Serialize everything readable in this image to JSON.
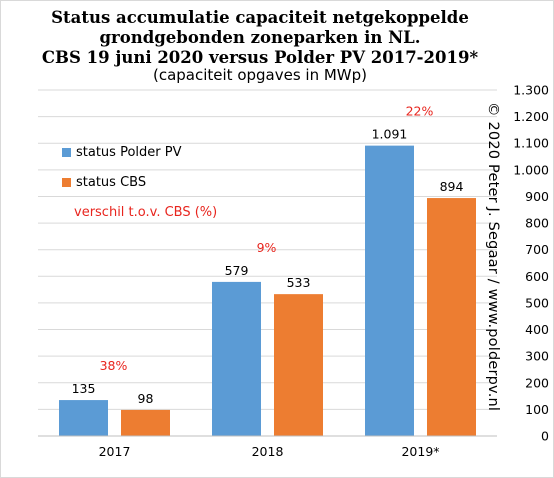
{
  "chart_data": {
    "type": "bar",
    "title_lines": [
      "Status accumulatie  capaciteit netgekoppelde",
      "grondgebonden zoneparken in NL.",
      "CBS 19 juni 2020 versus Polder PV 2017-2019*"
    ],
    "subtitle": "(capaciteit opgaves in MWp)",
    "categories": [
      "2017",
      "2018",
      "2019*"
    ],
    "series": [
      {
        "name": "status Polder PV",
        "values": [
          135,
          579,
          1091
        ],
        "labels": [
          "135",
          "579",
          "1.091"
        ],
        "color": "#5b9bd5"
      },
      {
        "name": "status CBS",
        "values": [
          98,
          533,
          894
        ],
        "labels": [
          "98",
          "533",
          "894"
        ],
        "color": "#ed7d31"
      }
    ],
    "difference_label": "verschil t.o.v. CBS (%)",
    "difference_values": [
      "38%",
      "9%",
      "22%"
    ],
    "difference_color": "#e8251e",
    "yaxis_side": "right",
    "ylim": [
      0,
      1300
    ],
    "yticks": [
      0,
      100,
      200,
      300,
      400,
      500,
      600,
      700,
      800,
      900,
      1000,
      1100,
      1200,
      1300
    ],
    "ytick_labels": [
      "0",
      "100",
      "200",
      "300",
      "400",
      "500",
      "600",
      "700",
      "800",
      "900",
      "1.000",
      "1.100",
      "1.200",
      "1.300"
    ],
    "grid": true,
    "legend_position": "top-left",
    "copyright": "© 2020 Peter J. Segaar / www.polderpv.nl"
  }
}
